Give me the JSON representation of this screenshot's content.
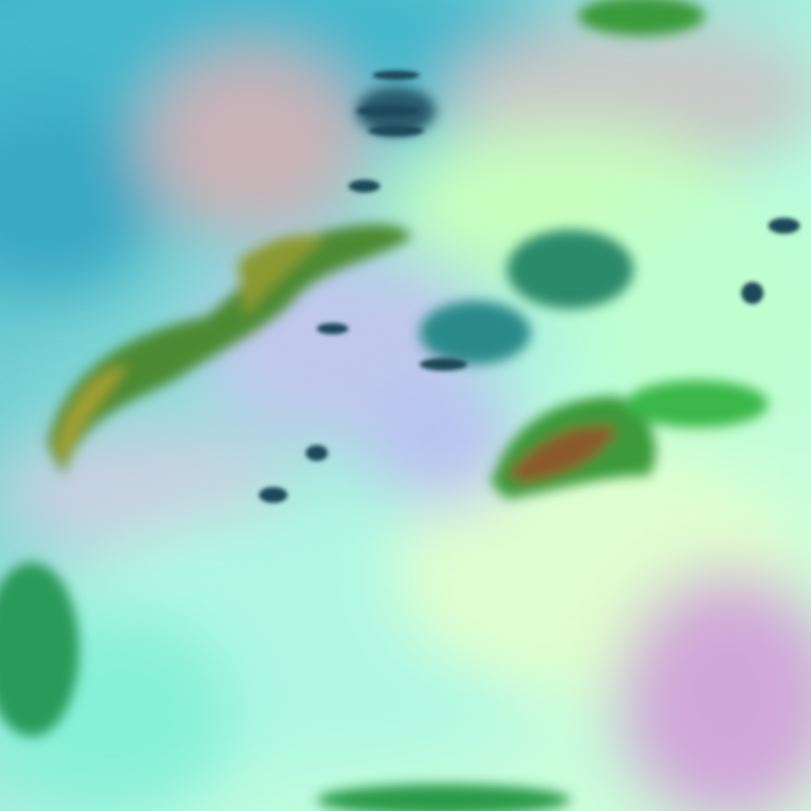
{
  "image": {
    "kind": "false-color satellite imagery",
    "colors": {
      "ocean": "#3fb8c8",
      "cloud_bright": "#c8ffd8",
      "cloud_cyan": "#7ff0e0",
      "cloud_pink": "#d8a8c8",
      "land_green": "#3a9a3a",
      "land_olive": "#8a9a30",
      "land_brown": "#8a5a2a",
      "shadow_dark": "#1a4a5a"
    }
  }
}
